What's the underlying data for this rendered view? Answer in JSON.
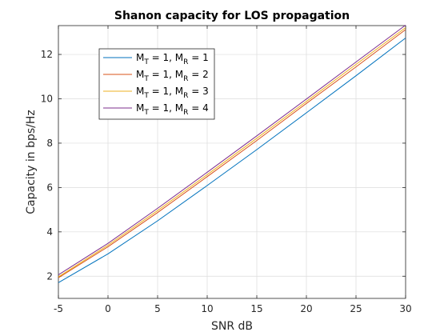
{
  "chart_data": {
    "type": "line",
    "title": "Shanon capacity for LOS propagation",
    "xlabel": "SNR dB",
    "ylabel": "Capacity in bps/Hz",
    "xlim": [
      -5,
      30
    ],
    "ylim": [
      1,
      13.3
    ],
    "xticks": [
      "-5",
      "0",
      "5",
      "10",
      "15",
      "20",
      "25",
      "30"
    ],
    "yticks": [
      "2",
      "4",
      "6",
      "8",
      "10",
      "12"
    ],
    "grid": true,
    "legend_position": "top-left",
    "x": [
      -5,
      0,
      5,
      10,
      15,
      20,
      25,
      30
    ],
    "series": [
      {
        "legend_parts": [
          "M",
          "T",
          " = 1, M",
          "R",
          " = 1"
        ],
        "color": "#0072BD",
        "values": [
          1.71,
          3.01,
          4.5,
          6.09,
          7.71,
          9.37,
          11.04,
          12.74
        ]
      },
      {
        "legend_parts": [
          "M",
          "T",
          " = 1, M",
          "R",
          " = 2"
        ],
        "color": "#D95319",
        "values": [
          1.93,
          3.33,
          4.87,
          6.49,
          8.12,
          9.79,
          11.44,
          13.12
        ]
      },
      {
        "legend_parts": [
          "M",
          "T",
          " = 1, M",
          "R",
          " = 3"
        ],
        "color": "#EDB120",
        "values": [
          1.97,
          3.4,
          4.96,
          6.58,
          8.22,
          9.88,
          11.55,
          13.21
        ]
      },
      {
        "legend_parts": [
          "M",
          "T",
          " = 1, M",
          "R",
          " = 4"
        ],
        "color": "#7E2F8E",
        "values": [
          2.06,
          3.48,
          5.06,
          6.69,
          8.33,
          9.99,
          11.66,
          13.32
        ]
      }
    ]
  }
}
